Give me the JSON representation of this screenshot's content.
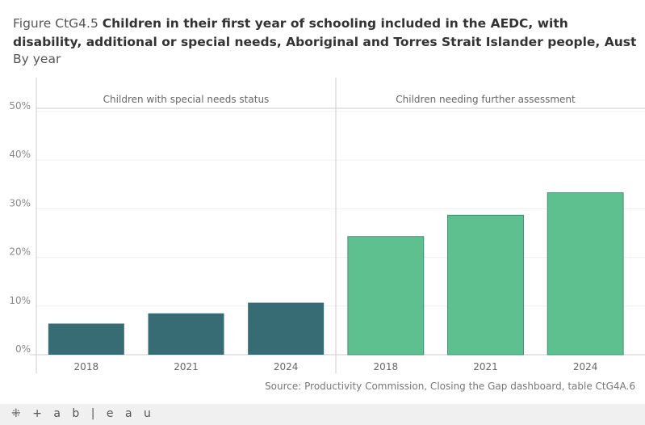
{
  "title": {
    "prefix": "Figure CtG4.5",
    "main": "Children in their first year of schooling included in the AEDC, with disability, additional or special needs, Aboriginal and Torres Strait Islander people, Aust",
    "subtitle": "By year"
  },
  "source": "Source: Productivity Commission, Closing the Gap dashboard, table CtG4A.6",
  "footer": {
    "logo": "+ a b | e a u"
  },
  "chart_data": {
    "type": "bar",
    "title": "Children in their first year of schooling included in the AEDC, with disability, additional or special needs, Aboriginal and Torres Strait Islander people, Aust",
    "ylim": [
      0,
      50
    ],
    "yticks": [
      "0%",
      "10%",
      "20%",
      "30%",
      "40%",
      "50%"
    ],
    "ytick_values": [
      0,
      10,
      20,
      30,
      40,
      50
    ],
    "categories": [
      "2018",
      "2021",
      "2024"
    ],
    "panels": [
      {
        "name": "Children with special needs status",
        "values": [
          6.4,
          8.5,
          10.7
        ],
        "color": "#386c74"
      },
      {
        "name": "Children needing further assessment",
        "values": [
          24.3,
          28.7,
          33.3
        ],
        "color": "#5ec08e"
      }
    ]
  }
}
